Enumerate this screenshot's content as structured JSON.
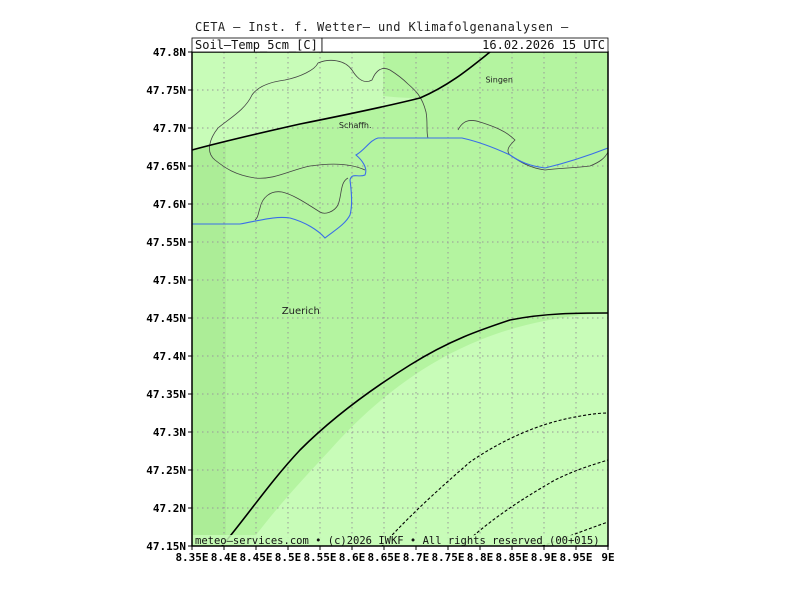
{
  "header": {
    "title": "CETA – Inst. f. Wetter– und Klimafolgenanalysen –",
    "parameter": "Soil–Temp_5cm_[C]",
    "valid_time": "16.02.2026  15 UTC"
  },
  "footer": {
    "credit": "meteo–services.com • (c)2026 IWKF • All rights reserved (00+015)"
  },
  "map": {
    "lon_range": [
      8.35,
      9.0
    ],
    "lat_range": [
      47.15,
      47.8
    ],
    "lon_ticks": [
      "8.35E",
      "8.4E",
      "8.45E",
      "8.5E",
      "8.55E",
      "8.6E",
      "8.65E",
      "8.7E",
      "8.75E",
      "8.8E",
      "8.85E",
      "8.9E",
      "8.95E",
      "9E"
    ],
    "lat_ticks": [
      "47.15N",
      "47.2N",
      "47.25N",
      "47.3N",
      "47.35N",
      "47.4N",
      "47.45N",
      "47.5N",
      "47.55N",
      "47.6N",
      "47.65N",
      "47.7N",
      "47.75N",
      "47.8N"
    ],
    "places": [
      {
        "name": "Singen",
        "lon": 8.83,
        "lat": 47.76
      },
      {
        "name": "Schaffh.",
        "lon": 8.605,
        "lat": 47.7
      },
      {
        "name": "Zuerich",
        "lon": 8.52,
        "lat": 47.455
      }
    ],
    "colors": {
      "shade_light": "#c8fcb8",
      "shade_mid": "#b4f4a0",
      "shade_dark": "#a6e890",
      "grid_dot": "#999999",
      "river": "#3a6ee8",
      "border": "#444444",
      "contour": "#000000"
    }
  }
}
